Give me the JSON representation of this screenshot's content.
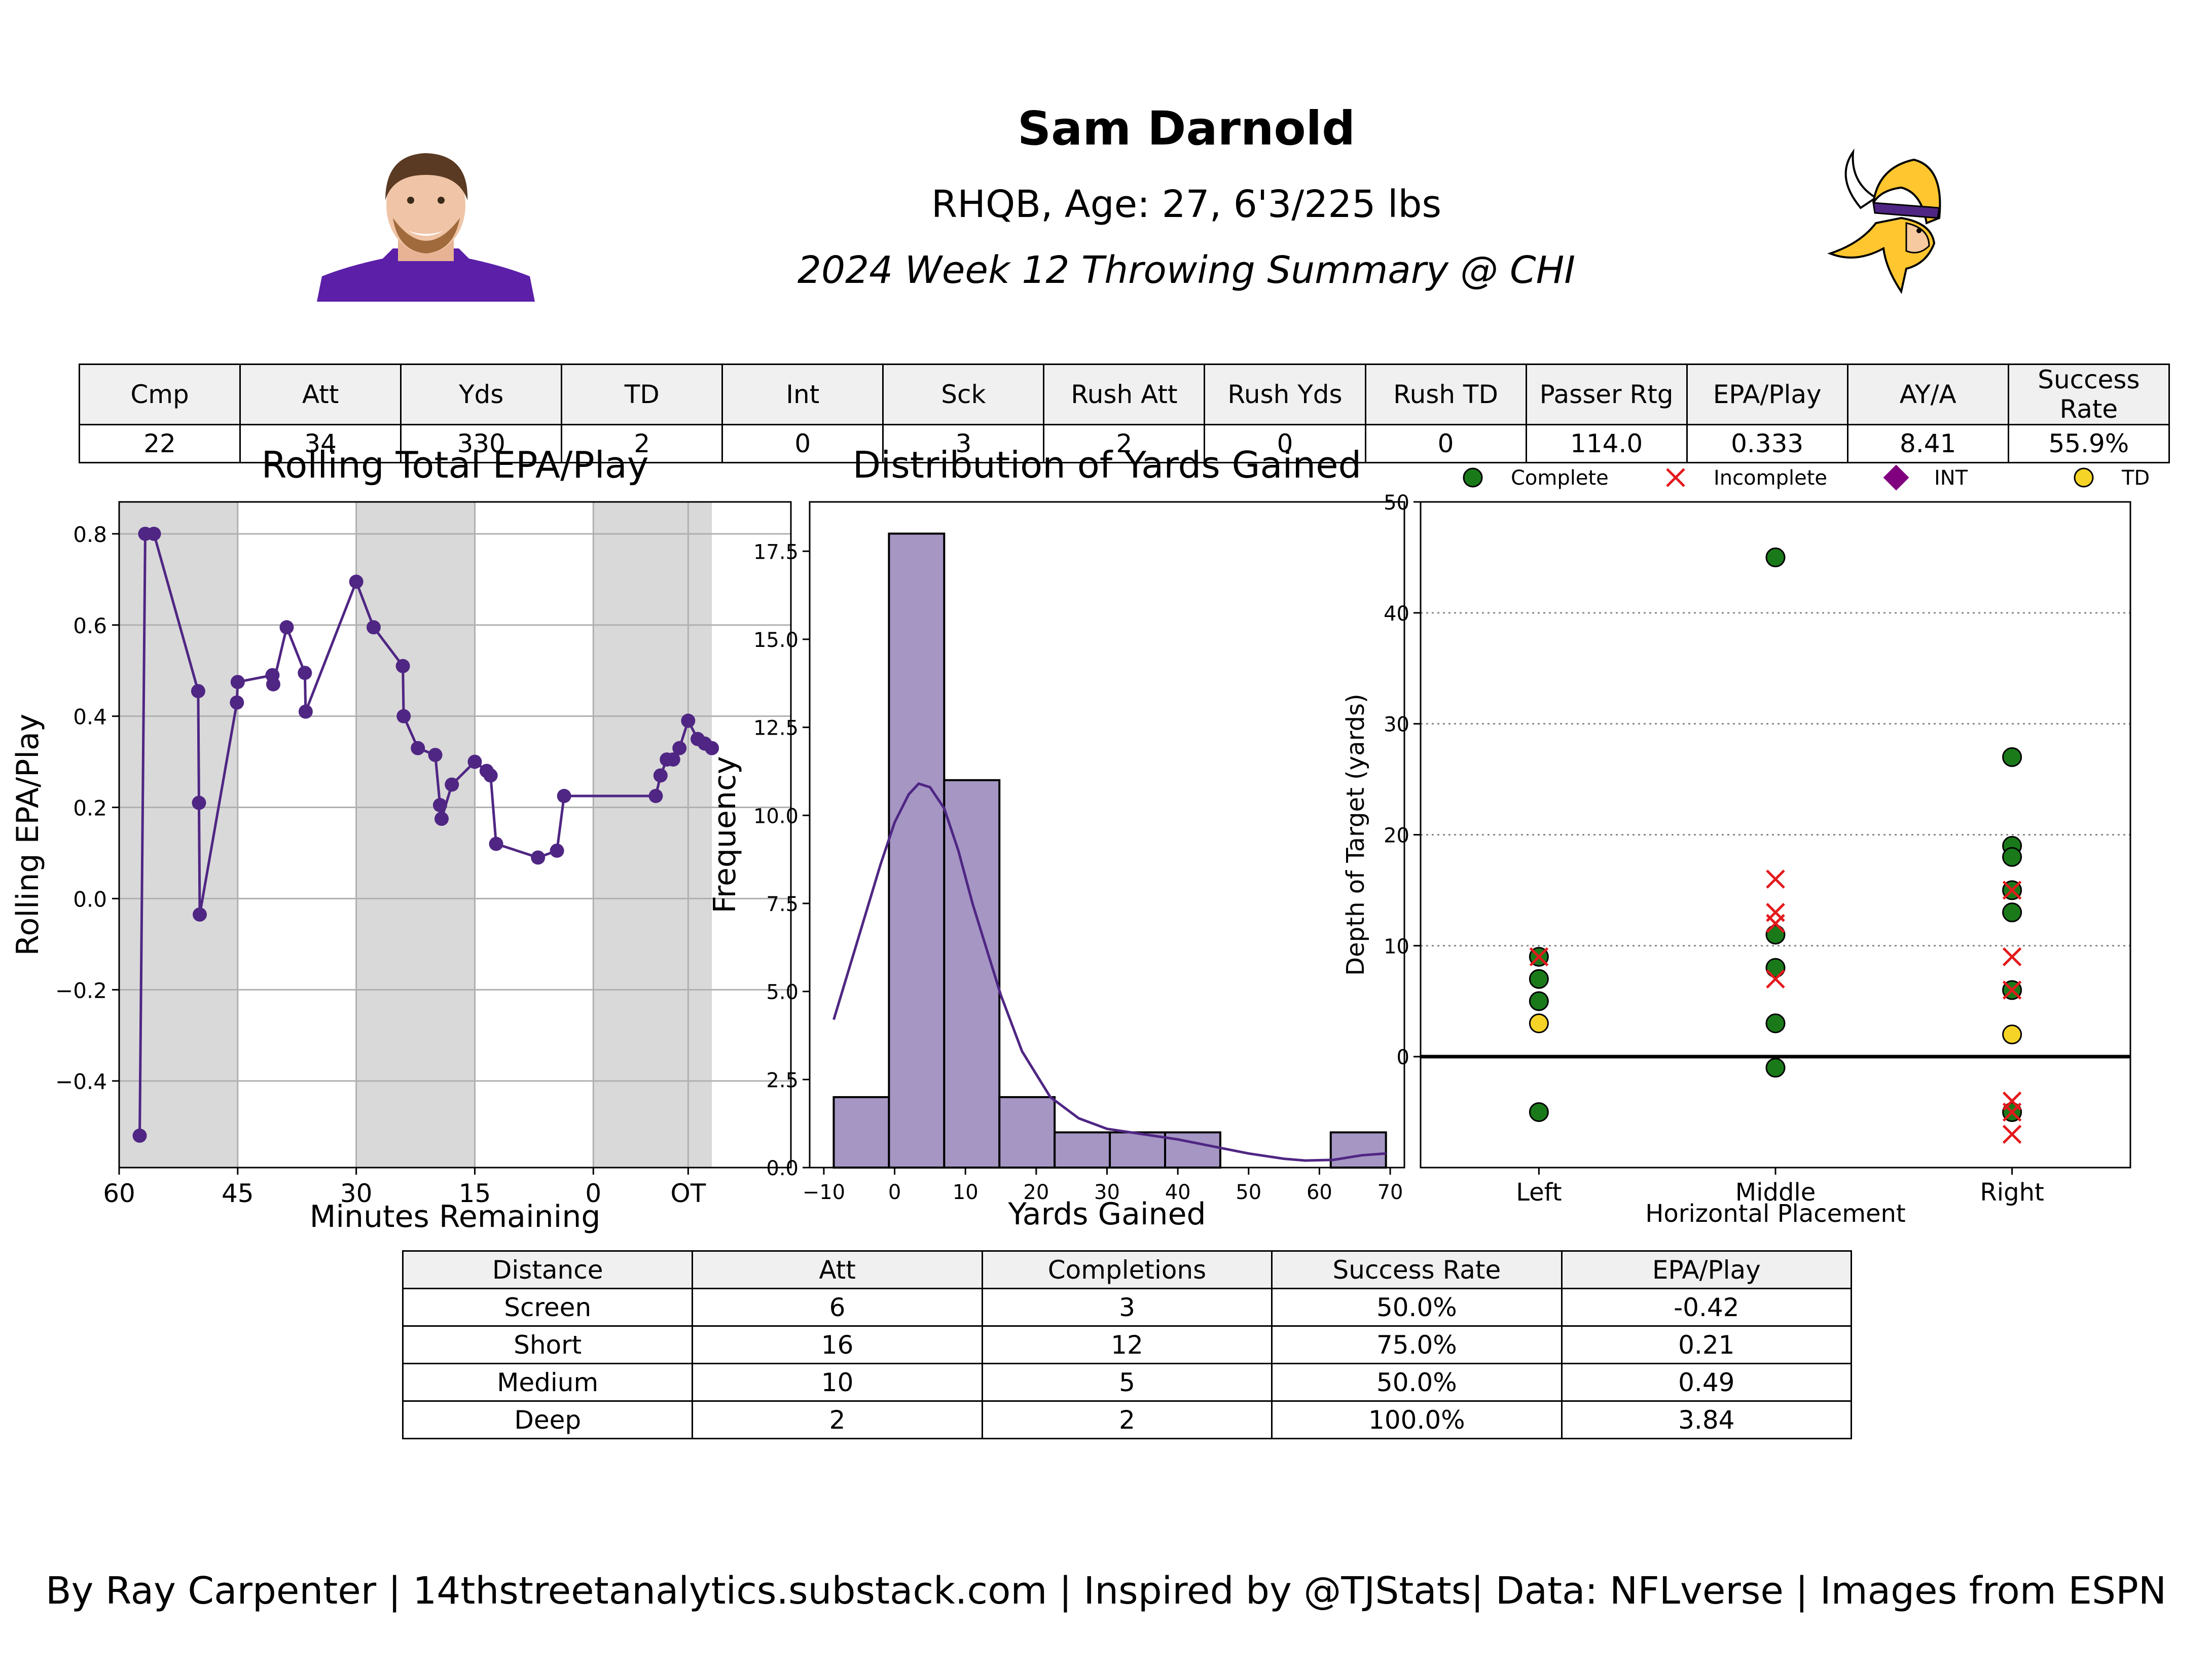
{
  "header": {
    "name": "Sam Darnold",
    "bio": "RHQB, Age: 27, 6'3/225 lbs",
    "game": "2024 Week 12 Throwing Summary @ CHI",
    "headshot_icon": "player-headshot",
    "logo_icon": "vikings-logo"
  },
  "colors": {
    "purple": "#4f2683",
    "bar_fill": "#a596c4",
    "complete": "#1a7a1a",
    "incomplete": "#e31a1c",
    "int": "#800080",
    "td": "#f5d327",
    "shade": "#d9d9d9"
  },
  "summary_table": {
    "headers": [
      "Cmp",
      "Att",
      "Yds",
      "TD",
      "Int",
      "Sck",
      "Rush Att",
      "Rush Yds",
      "Rush TD",
      "Passer Rtg",
      "EPA/Play",
      "AY/A",
      "Success Rate"
    ],
    "row": [
      "22",
      "34",
      "330",
      "2",
      "0",
      "3",
      "2",
      "0",
      "0",
      "114.0",
      "0.333",
      "8.41",
      "55.9%"
    ]
  },
  "depth_table": {
    "headers": [
      "Distance",
      "Att",
      "Completions",
      "Success Rate",
      "EPA/Play"
    ],
    "rows": [
      [
        "Screen",
        "6",
        "3",
        "50.0%",
        "-0.42"
      ],
      [
        "Short",
        "16",
        "12",
        "75.0%",
        "0.21"
      ],
      [
        "Medium",
        "10",
        "5",
        "50.0%",
        "0.49"
      ],
      [
        "Deep",
        "2",
        "2",
        "100.0%",
        "3.84"
      ]
    ]
  },
  "footer": "By Ray Carpenter | 14thstreetanalytics.substack.com | Inspired by @TJStats| Data: NFLverse | Images from ESPN",
  "chart_data": [
    {
      "type": "line",
      "title": "Rolling Total EPA/Play",
      "xlabel": "Minutes Remaining",
      "ylabel": "Rolling EPA/Play",
      "xlim": [
        60,
        -25
      ],
      "ylim": [
        -0.59,
        0.87
      ],
      "xticks": [
        60,
        45,
        30,
        15,
        0,
        -12
      ],
      "xtick_labels": [
        "60",
        "45",
        "30",
        "15",
        "0",
        "OT"
      ],
      "yticks": [
        -0.4,
        -0.2,
        0.0,
        0.2,
        0.4,
        0.6,
        0.8
      ],
      "ytick_labels": [
        "−0.4",
        "−0.2",
        "0.0",
        "0.2",
        "0.4",
        "0.6",
        "0.8"
      ],
      "shaded_quarters": [
        [
          60,
          45
        ],
        [
          30,
          15
        ],
        [
          0,
          -15
        ]
      ],
      "grid": true,
      "x": [
        57.4,
        56.7,
        55.6,
        50.0,
        49.9,
        49.8,
        45.1,
        45.0,
        40.6,
        40.5,
        38.8,
        36.5,
        36.4,
        30.0,
        27.8,
        24.1,
        24.0,
        22.2,
        20.0,
        19.4,
        19.2,
        17.9,
        15.0,
        13.5,
        13.0,
        12.3,
        7.0,
        4.6,
        3.7,
        -7.9,
        -8.5,
        -9.3,
        -10.1,
        -10.9,
        -12.0,
        -13.2,
        -14.1,
        -15.0
      ],
      "y": [
        -0.52,
        0.8,
        0.8,
        0.455,
        0.21,
        -0.035,
        0.43,
        0.475,
        0.49,
        0.47,
        0.595,
        0.495,
        0.41,
        0.695,
        0.595,
        0.51,
        0.4,
        0.33,
        0.315,
        0.205,
        0.175,
        0.25,
        0.3,
        0.28,
        0.27,
        0.12,
        0.09,
        0.105,
        0.225,
        0.225,
        0.27,
        0.305,
        0.305,
        0.33,
        0.39,
        0.35,
        0.34,
        0.33
      ]
    },
    {
      "type": "bar",
      "title": "Distribution of Yards Gained",
      "xlabel": "Yards Gained",
      "ylabel": "Frequency",
      "xlim": [
        -12,
        72
      ],
      "ylim": [
        0,
        18.9
      ],
      "xticks": [
        -10,
        0,
        10,
        20,
        30,
        40,
        50,
        60,
        70
      ],
      "xtick_labels": [
        "−10",
        "0",
        "10",
        "20",
        "30",
        "40",
        "50",
        "60",
        "70"
      ],
      "yticks": [
        0,
        2.5,
        5,
        7.5,
        10,
        12.5,
        15,
        17.5
      ],
      "ytick_labels": [
        "0.0",
        "2.5",
        "5.0",
        "7.5",
        "10.0",
        "12.5",
        "15.0",
        "17.5"
      ],
      "bin_edges": [
        -8.6,
        -0.8,
        7.0,
        14.8,
        22.6,
        30.4,
        38.2,
        46.0,
        53.8,
        61.6,
        69.4
      ],
      "values": [
        2,
        18,
        11,
        2,
        1,
        1,
        1,
        0,
        0,
        1
      ],
      "kde_x": [
        -8.6,
        -5,
        -2,
        0,
        2,
        3.4,
        5,
        7,
        9,
        11,
        13,
        15,
        18,
        22,
        26,
        30,
        35,
        40,
        45,
        50,
        55,
        58,
        62,
        66,
        69.4
      ],
      "kde_y": [
        4.2,
        6.6,
        8.6,
        9.8,
        10.6,
        10.9,
        10.8,
        10.2,
        9.0,
        7.5,
        6.2,
        4.9,
        3.3,
        2.0,
        1.4,
        1.1,
        0.95,
        0.8,
        0.6,
        0.4,
        0.25,
        0.2,
        0.22,
        0.35,
        0.4
      ]
    },
    {
      "type": "scatter",
      "title": "",
      "xlabel": "Horizontal Placement",
      "ylabel": "Depth of Target (yards)",
      "categories": [
        "Left",
        "Middle",
        "Right"
      ],
      "ylim": [
        -10,
        50
      ],
      "yticks": [
        0,
        10,
        20,
        30,
        40,
        50
      ],
      "ytick_labels": [
        "0",
        "10",
        "20",
        "30",
        "40",
        "50"
      ],
      "legend": [
        "Complete",
        "Incomplete",
        "INT",
        "TD"
      ],
      "legend_position": "top",
      "series": [
        {
          "name": "Complete",
          "marker": "circle",
          "points": [
            {
              "x": "Left",
              "y": 9
            },
            {
              "x": "Left",
              "y": 7
            },
            {
              "x": "Left",
              "y": 5
            },
            {
              "x": "Left",
              "y": -5
            },
            {
              "x": "Middle",
              "y": 45
            },
            {
              "x": "Middle",
              "y": 11
            },
            {
              "x": "Middle",
              "y": 8
            },
            {
              "x": "Middle",
              "y": 3
            },
            {
              "x": "Middle",
              "y": -1
            },
            {
              "x": "Right",
              "y": 27
            },
            {
              "x": "Right",
              "y": 19
            },
            {
              "x": "Right",
              "y": 18
            },
            {
              "x": "Right",
              "y": 15
            },
            {
              "x": "Right",
              "y": 13
            },
            {
              "x": "Right",
              "y": 6
            },
            {
              "x": "Right",
              "y": -5
            }
          ]
        },
        {
          "name": "Incomplete",
          "marker": "x",
          "points": [
            {
              "x": "Left",
              "y": 9
            },
            {
              "x": "Middle",
              "y": 16
            },
            {
              "x": "Middle",
              "y": 13
            },
            {
              "x": "Middle",
              "y": 12
            },
            {
              "x": "Middle",
              "y": 7
            },
            {
              "x": "Right",
              "y": 15
            },
            {
              "x": "Right",
              "y": 9
            },
            {
              "x": "Right",
              "y": 6
            },
            {
              "x": "Right",
              "y": -4
            },
            {
              "x": "Right",
              "y": -5
            },
            {
              "x": "Right",
              "y": -7
            }
          ]
        },
        {
          "name": "INT",
          "marker": "diamond",
          "points": []
        },
        {
          "name": "TD",
          "marker": "circle",
          "points": [
            {
              "x": "Left",
              "y": 3
            },
            {
              "x": "Right",
              "y": 2
            }
          ]
        }
      ]
    }
  ]
}
